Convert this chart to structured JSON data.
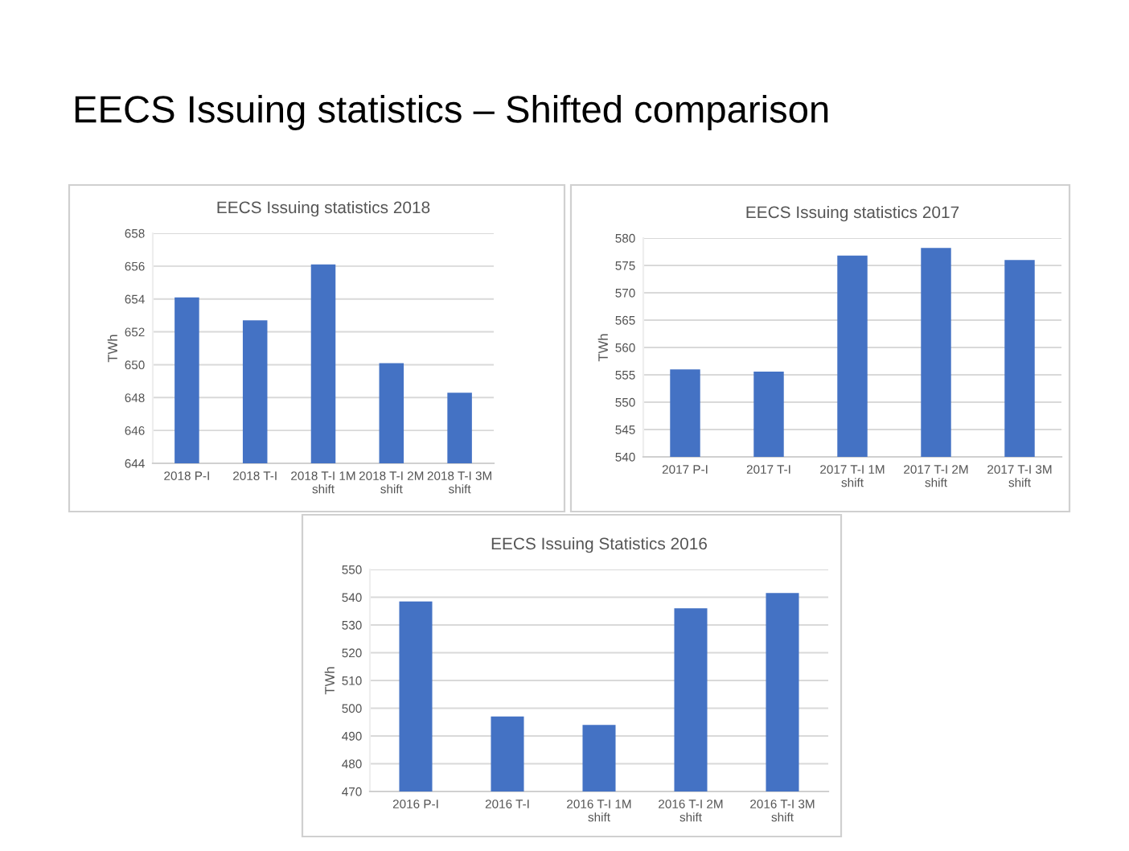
{
  "chart_data": [
    {
      "type": "bar",
      "title": "EECS Issuing statistics 2018",
      "ylabel": "TWh",
      "annotations": [
        "EECS Issuing statistics – Shifted comparison"
      ],
      "categories": [
        "2018 P-I",
        "2018 T-I",
        "2018 T-I 1M\nshift",
        "2018 T-I 2M\nshift",
        "2018 T-I 3M\nshift"
      ],
      "series": [
        {
          "color": "#4472c4",
          "values": [
            654.1,
            652.7,
            656.1,
            650.1,
            648.3
          ]
        }
      ],
      "ylim": [
        644,
        658
      ],
      "yticks": [
        644,
        646,
        648,
        650,
        652,
        654,
        656,
        658
      ],
      "grid": "y",
      "legend": false
    },
    {
      "type": "bar",
      "title": "EECS Issuing statistics 2017",
      "ylabel": "TWh",
      "categories": [
        "2017 P-I",
        "2017 T-I",
        "2017 T-I 1M\nshift",
        "2017 T-I 2M\nshift",
        "2017 T-I 3M\nshift"
      ],
      "series": [
        {
          "color": "#4472c4",
          "values": [
            556.0,
            555.6,
            576.8,
            578.2,
            576.0
          ]
        }
      ],
      "ylim": [
        540,
        580
      ],
      "yticks": [
        540,
        545,
        550,
        555,
        560,
        565,
        570,
        575,
        580
      ],
      "grid": "y",
      "legend": false
    },
    {
      "type": "bar",
      "title": "EECS Issuing Statistics 2016",
      "ylabel": "TWh",
      "categories": [
        "2016 P-I",
        "2016 T-I",
        "2016 T-I 1M\nshift",
        "2016 T-I 2M\nshift",
        "2016 T-I 3M\nshift"
      ],
      "series": [
        {
          "color": "#4472c4",
          "values": [
            538.5,
            497,
            494,
            536,
            541.5
          ]
        }
      ],
      "ylim": [
        470,
        550
      ],
      "yticks": [
        470,
        480,
        490,
        500,
        510,
        520,
        530,
        540,
        550
      ],
      "grid": "y",
      "legend": false
    }
  ]
}
